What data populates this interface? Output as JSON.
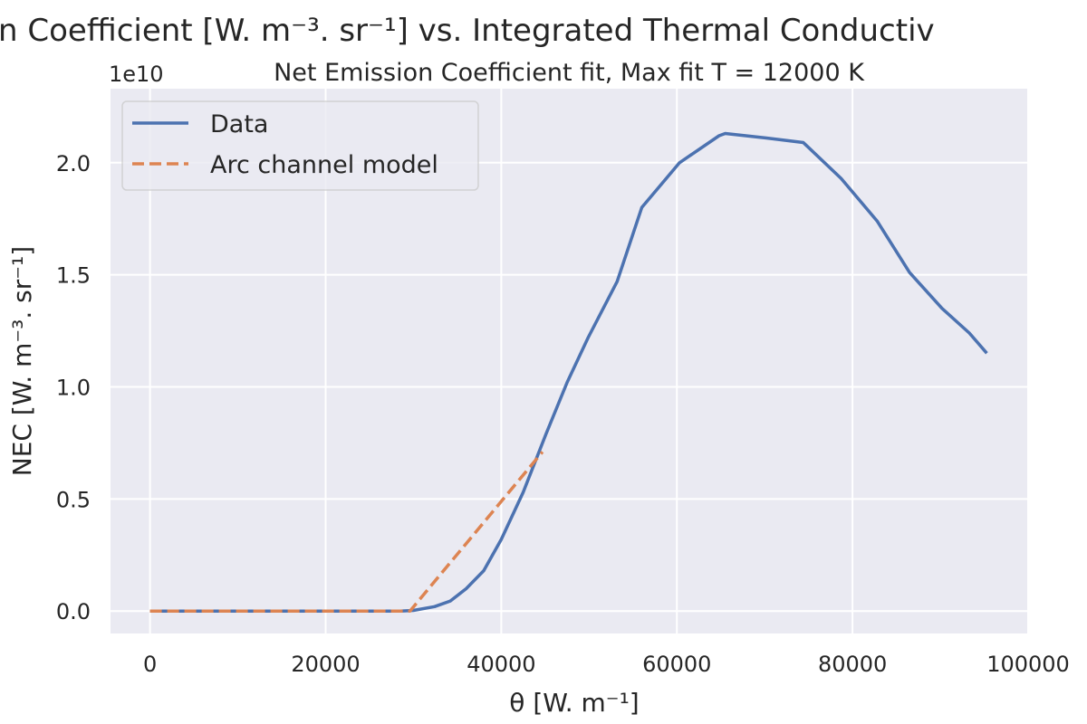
{
  "chart_data": {
    "type": "line",
    "suptitle": "n Coefficient [W. m⁻³. sr⁻¹] vs. Integrated Thermal Conductiv",
    "title": "Net Emission Coefficient fit, Max fit T = 12000 K",
    "xlabel": "θ [W. m⁻¹]",
    "ylabel": "NEC [W. m⁻³. sr⁻¹]",
    "y_offset_label": "1e10",
    "xlim": [
      -4500,
      100000
    ],
    "ylim": [
      -0.1,
      2.33
    ],
    "xticks": [
      0,
      20000,
      40000,
      60000,
      80000,
      100000
    ],
    "xtick_labels": [
      "0",
      "20000",
      "40000",
      "60000",
      "80000",
      "100000"
    ],
    "yticks": [
      0.0,
      0.5,
      1.0,
      1.5,
      2.0
    ],
    "ytick_labels": [
      "0.0",
      "0.5",
      "1.0",
      "1.5",
      "2.0"
    ],
    "grid": true,
    "legend_position": "top-left",
    "series": [
      {
        "name": "Data",
        "color": "#4c72b0",
        "dash": "solid",
        "x": [
          0,
          10000,
          20000,
          28500,
          30000,
          32400,
          34200,
          36000,
          38000,
          40000,
          42500,
          45100,
          47500,
          49900,
          53200,
          56000,
          60300,
          64800,
          65500,
          70200,
          74400,
          78700,
          82800,
          86500,
          90200,
          93300,
          95300
        ],
        "y": [
          0,
          0,
          0,
          0,
          0.003,
          0.02,
          0.045,
          0.1,
          0.18,
          0.32,
          0.53,
          0.79,
          1.02,
          1.22,
          1.47,
          1.8,
          2.0,
          2.12,
          2.13,
          2.11,
          2.09,
          1.93,
          1.74,
          1.51,
          1.35,
          1.24,
          1.15
        ]
      },
      {
        "name": "Arc channel model",
        "color": "#dd8452",
        "dash": "dashed",
        "x": [
          0,
          29600,
          44700
        ],
        "y": [
          0,
          0,
          0.71
        ]
      }
    ]
  }
}
